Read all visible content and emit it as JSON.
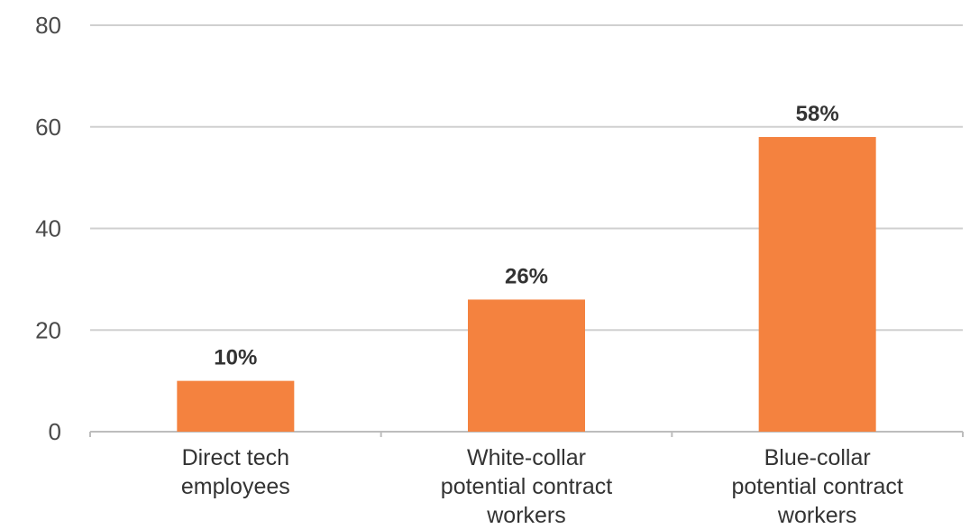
{
  "chart_data": {
    "type": "bar",
    "categories": [
      [
        "Direct tech",
        "employees"
      ],
      [
        "White-collar",
        "potential contract",
        "workers"
      ],
      [
        "Blue-collar",
        "potential contract",
        "workers"
      ]
    ],
    "values": [
      10,
      26,
      58
    ],
    "data_labels": [
      "10%",
      "26%",
      "58%"
    ],
    "yticks": [
      "0",
      "20",
      "40",
      "60",
      "80"
    ],
    "ylim": [
      0,
      80
    ],
    "grid": true,
    "legend": "none",
    "colors": {
      "bar": "#f4823f"
    }
  }
}
